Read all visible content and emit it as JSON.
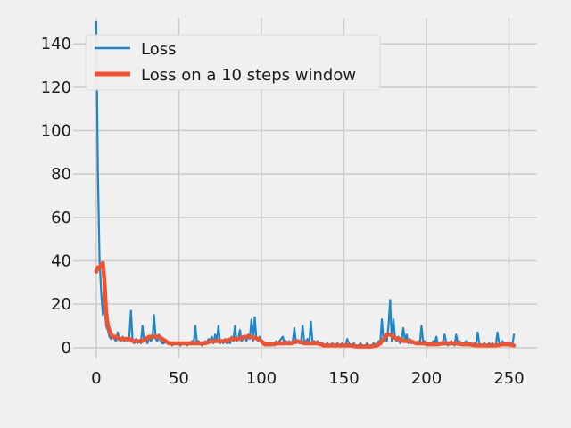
{
  "chart_data": {
    "type": "line",
    "title": "",
    "xlabel": "",
    "ylabel": "",
    "xlim": [
      -14,
      267
    ],
    "ylim": [
      -5,
      152
    ],
    "grid": true,
    "legend_position": "top-left",
    "x_ticks": [
      0,
      50,
      100,
      150,
      200,
      250
    ],
    "y_ticks": [
      0,
      20,
      40,
      60,
      80,
      100,
      120,
      140
    ],
    "colors": {
      "loss": "#1f86c7",
      "window": "#f4502c",
      "background": "#f0f0f0",
      "grid": "#cbcbcb"
    },
    "series": [
      {
        "name": "Loss",
        "points": [
          [
            0,
            150
          ],
          [
            1,
            80
          ],
          [
            2,
            40
          ],
          [
            3,
            25
          ],
          [
            4,
            15
          ],
          [
            5,
            20
          ],
          [
            6,
            10
          ],
          [
            7,
            8
          ],
          [
            8,
            5
          ],
          [
            9,
            4
          ],
          [
            10,
            6
          ],
          [
            11,
            4
          ],
          [
            12,
            3
          ],
          [
            13,
            7
          ],
          [
            14,
            4
          ],
          [
            15,
            3
          ],
          [
            16,
            5
          ],
          [
            17,
            3
          ],
          [
            18,
            4
          ],
          [
            19,
            3
          ],
          [
            20,
            5
          ],
          [
            21,
            17
          ],
          [
            22,
            3
          ],
          [
            23,
            2
          ],
          [
            24,
            4
          ],
          [
            25,
            2
          ],
          [
            26,
            3
          ],
          [
            27,
            2
          ],
          [
            28,
            10
          ],
          [
            29,
            3
          ],
          [
            30,
            4
          ],
          [
            31,
            2
          ],
          [
            32,
            5
          ],
          [
            33,
            3
          ],
          [
            34,
            4
          ],
          [
            35,
            15
          ],
          [
            36,
            4
          ],
          [
            37,
            3
          ],
          [
            38,
            6
          ],
          [
            39,
            3
          ],
          [
            40,
            2
          ],
          [
            41,
            2
          ],
          [
            42,
            3
          ],
          [
            43,
            2
          ],
          [
            44,
            2
          ],
          [
            45,
            2
          ],
          [
            46,
            1
          ],
          [
            47,
            2
          ],
          [
            48,
            2
          ],
          [
            49,
            2
          ],
          [
            50,
            2
          ],
          [
            51,
            1
          ],
          [
            52,
            2
          ],
          [
            53,
            2
          ],
          [
            54,
            2
          ],
          [
            55,
            1
          ],
          [
            56,
            2
          ],
          [
            57,
            2
          ],
          [
            58,
            3
          ],
          [
            59,
            2
          ],
          [
            60,
            10
          ],
          [
            61,
            2
          ],
          [
            62,
            3
          ],
          [
            63,
            2
          ],
          [
            64,
            1
          ],
          [
            65,
            2
          ],
          [
            66,
            3
          ],
          [
            67,
            2
          ],
          [
            68,
            4
          ],
          [
            69,
            3
          ],
          [
            70,
            5
          ],
          [
            71,
            2
          ],
          [
            72,
            6
          ],
          [
            73,
            3
          ],
          [
            74,
            10
          ],
          [
            75,
            2
          ],
          [
            76,
            3
          ],
          [
            77,
            2
          ],
          [
            78,
            4
          ],
          [
            79,
            2
          ],
          [
            80,
            3
          ],
          [
            81,
            2
          ],
          [
            82,
            5
          ],
          [
            83,
            3
          ],
          [
            84,
            10
          ],
          [
            85,
            3
          ],
          [
            86,
            4
          ],
          [
            87,
            8
          ],
          [
            88,
            3
          ],
          [
            89,
            4
          ],
          [
            90,
            5
          ],
          [
            91,
            3
          ],
          [
            92,
            6
          ],
          [
            93,
            4
          ],
          [
            94,
            13
          ],
          [
            95,
            3
          ],
          [
            96,
            14
          ],
          [
            97,
            4
          ],
          [
            98,
            3
          ],
          [
            99,
            5
          ],
          [
            100,
            3
          ],
          [
            101,
            2
          ],
          [
            102,
            1
          ],
          [
            103,
            2
          ],
          [
            104,
            1
          ],
          [
            105,
            2
          ],
          [
            106,
            1
          ],
          [
            107,
            2
          ],
          [
            108,
            1
          ],
          [
            109,
            3
          ],
          [
            110,
            2
          ],
          [
            111,
            3
          ],
          [
            112,
            4
          ],
          [
            113,
            5
          ],
          [
            114,
            2
          ],
          [
            115,
            3
          ],
          [
            116,
            2
          ],
          [
            117,
            3
          ],
          [
            118,
            2
          ],
          [
            119,
            3
          ],
          [
            120,
            9
          ],
          [
            121,
            2
          ],
          [
            122,
            3
          ],
          [
            123,
            2
          ],
          [
            124,
            3
          ],
          [
            125,
            10
          ],
          [
            126,
            2
          ],
          [
            127,
            3
          ],
          [
            128,
            4
          ],
          [
            129,
            2
          ],
          [
            130,
            12
          ],
          [
            131,
            2
          ],
          [
            132,
            3
          ],
          [
            133,
            2
          ],
          [
            134,
            3
          ],
          [
            135,
            2
          ],
          [
            136,
            1
          ],
          [
            137,
            2
          ],
          [
            138,
            1
          ],
          [
            139,
            1
          ],
          [
            140,
            2
          ],
          [
            141,
            1
          ],
          [
            142,
            1
          ],
          [
            143,
            2
          ],
          [
            144,
            1
          ],
          [
            145,
            1
          ],
          [
            146,
            2
          ],
          [
            147,
            1
          ],
          [
            148,
            1
          ],
          [
            149,
            2
          ],
          [
            150,
            1
          ],
          [
            151,
            1
          ],
          [
            152,
            4
          ],
          [
            153,
            2
          ],
          [
            154,
            1
          ],
          [
            155,
            1
          ],
          [
            156,
            2
          ],
          [
            157,
            1
          ],
          [
            158,
            1
          ],
          [
            159,
            1
          ],
          [
            160,
            2
          ],
          [
            161,
            1
          ],
          [
            162,
            1
          ],
          [
            163,
            1
          ],
          [
            164,
            2
          ],
          [
            165,
            1
          ],
          [
            166,
            1
          ],
          [
            167,
            1
          ],
          [
            168,
            2
          ],
          [
            169,
            1
          ],
          [
            170,
            2
          ],
          [
            171,
            3
          ],
          [
            172,
            2
          ],
          [
            173,
            13
          ],
          [
            174,
            3
          ],
          [
            175,
            4
          ],
          [
            176,
            3
          ],
          [
            177,
            10
          ],
          [
            178,
            22
          ],
          [
            179,
            3
          ],
          [
            180,
            13
          ],
          [
            181,
            4
          ],
          [
            182,
            3
          ],
          [
            183,
            5
          ],
          [
            184,
            2
          ],
          [
            185,
            4
          ],
          [
            186,
            9
          ],
          [
            187,
            3
          ],
          [
            188,
            6
          ],
          [
            189,
            2
          ],
          [
            190,
            4
          ],
          [
            191,
            2
          ],
          [
            192,
            3
          ],
          [
            193,
            2
          ],
          [
            194,
            2
          ],
          [
            195,
            3
          ],
          [
            196,
            2
          ],
          [
            197,
            10
          ],
          [
            198,
            2
          ],
          [
            199,
            3
          ],
          [
            200,
            2
          ],
          [
            201,
            1
          ],
          [
            202,
            2
          ],
          [
            203,
            1
          ],
          [
            204,
            3
          ],
          [
            205,
            2
          ],
          [
            206,
            5
          ],
          [
            207,
            1
          ],
          [
            208,
            2
          ],
          [
            209,
            2
          ],
          [
            210,
            3
          ],
          [
            211,
            6
          ],
          [
            212,
            2
          ],
          [
            213,
            1
          ],
          [
            214,
            2
          ],
          [
            215,
            3
          ],
          [
            216,
            2
          ],
          [
            217,
            1
          ],
          [
            218,
            6
          ],
          [
            219,
            2
          ],
          [
            220,
            3
          ],
          [
            221,
            2
          ],
          [
            222,
            1
          ],
          [
            223,
            2
          ],
          [
            224,
            3
          ],
          [
            225,
            2
          ],
          [
            226,
            1
          ],
          [
            227,
            2
          ],
          [
            228,
            1
          ],
          [
            229,
            2
          ],
          [
            230,
            1
          ],
          [
            231,
            7
          ],
          [
            232,
            2
          ],
          [
            233,
            1
          ],
          [
            234,
            1
          ],
          [
            235,
            2
          ],
          [
            236,
            1
          ],
          [
            237,
            1
          ],
          [
            238,
            2
          ],
          [
            239,
            1
          ],
          [
            240,
            2
          ],
          [
            241,
            1
          ],
          [
            242,
            1
          ],
          [
            243,
            7
          ],
          [
            244,
            2
          ],
          [
            245,
            1
          ],
          [
            246,
            3
          ],
          [
            247,
            2
          ],
          [
            248,
            1
          ],
          [
            249,
            2
          ],
          [
            250,
            1
          ],
          [
            251,
            2
          ],
          [
            252,
            1
          ],
          [
            253,
            6
          ]
        ]
      },
      {
        "name": "Loss on a 10 steps window",
        "points": [
          [
            0,
            35
          ],
          [
            1,
            37
          ],
          [
            2,
            37
          ],
          [
            3,
            38
          ],
          [
            4,
            39
          ],
          [
            5,
            30
          ],
          [
            6,
            16
          ],
          [
            7,
            10
          ],
          [
            8,
            8
          ],
          [
            9,
            6
          ],
          [
            10,
            5
          ],
          [
            12,
            5
          ],
          [
            14,
            4
          ],
          [
            16,
            4
          ],
          [
            18,
            4
          ],
          [
            20,
            4
          ],
          [
            22,
            3
          ],
          [
            24,
            3
          ],
          [
            26,
            3
          ],
          [
            28,
            3
          ],
          [
            30,
            4
          ],
          [
            32,
            5
          ],
          [
            34,
            5
          ],
          [
            36,
            5
          ],
          [
            38,
            5
          ],
          [
            40,
            4
          ],
          [
            42,
            3
          ],
          [
            44,
            2
          ],
          [
            46,
            2
          ],
          [
            48,
            2
          ],
          [
            50,
            2
          ],
          [
            54,
            2
          ],
          [
            58,
            2
          ],
          [
            62,
            2
          ],
          [
            66,
            2
          ],
          [
            70,
            3
          ],
          [
            74,
            3
          ],
          [
            78,
            3
          ],
          [
            82,
            4
          ],
          [
            86,
            4
          ],
          [
            90,
            5
          ],
          [
            94,
            5
          ],
          [
            98,
            4
          ],
          [
            100,
            3
          ],
          [
            102,
            1.5
          ],
          [
            104,
            1.5
          ],
          [
            106,
            1.5
          ],
          [
            110,
            2
          ],
          [
            114,
            2
          ],
          [
            118,
            2
          ],
          [
            122,
            3
          ],
          [
            126,
            2
          ],
          [
            130,
            2
          ],
          [
            134,
            2
          ],
          [
            138,
            1
          ],
          [
            142,
            1
          ],
          [
            146,
            1
          ],
          [
            150,
            1
          ],
          [
            154,
            1
          ],
          [
            158,
            0.5
          ],
          [
            162,
            0.5
          ],
          [
            166,
            0.5
          ],
          [
            170,
            1
          ],
          [
            172,
            2
          ],
          [
            174,
            4
          ],
          [
            176,
            6
          ],
          [
            178,
            6
          ],
          [
            180,
            5
          ],
          [
            182,
            4
          ],
          [
            184,
            4
          ],
          [
            186,
            3
          ],
          [
            190,
            3
          ],
          [
            194,
            2
          ],
          [
            198,
            2
          ],
          [
            202,
            1.5
          ],
          [
            206,
            1.5
          ],
          [
            210,
            2
          ],
          [
            214,
            2
          ],
          [
            218,
            2
          ],
          [
            222,
            1.5
          ],
          [
            226,
            1.5
          ],
          [
            230,
            1
          ],
          [
            234,
            1
          ],
          [
            238,
            1
          ],
          [
            242,
            1
          ],
          [
            246,
            1.5
          ],
          [
            250,
            1.5
          ],
          [
            253,
            1
          ]
        ]
      }
    ]
  }
}
